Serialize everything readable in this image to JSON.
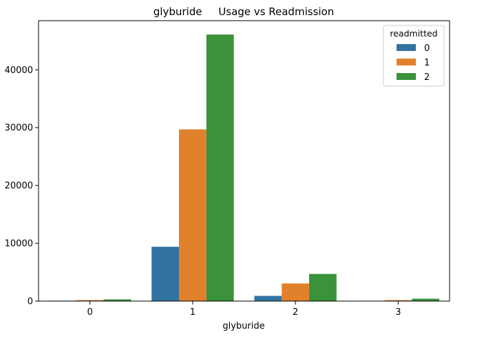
{
  "chart_data": {
    "type": "bar",
    "title": "glyburide     Usage vs Readmission",
    "xlabel": "glyburide",
    "ylabel": "",
    "categories": [
      "0",
      "1",
      "2",
      "3"
    ],
    "yticks": [
      0,
      10000,
      20000,
      30000,
      40000
    ],
    "ytick_labels": [
      "0",
      "10000",
      "20000",
      "30000",
      "40000"
    ],
    "ylim": [
      0,
      48500
    ],
    "grid": false,
    "legend": {
      "title": "readmitted",
      "placement": "top-right"
    },
    "series": [
      {
        "name": "0",
        "color": "#3274a1",
        "values": [
          80,
          9400,
          900,
          60
        ]
      },
      {
        "name": "1",
        "color": "#e1812c",
        "values": [
          180,
          29700,
          3050,
          170
        ]
      },
      {
        "name": "2",
        "color": "#3a923a",
        "values": [
          300,
          46100,
          4700,
          420
        ]
      }
    ]
  }
}
